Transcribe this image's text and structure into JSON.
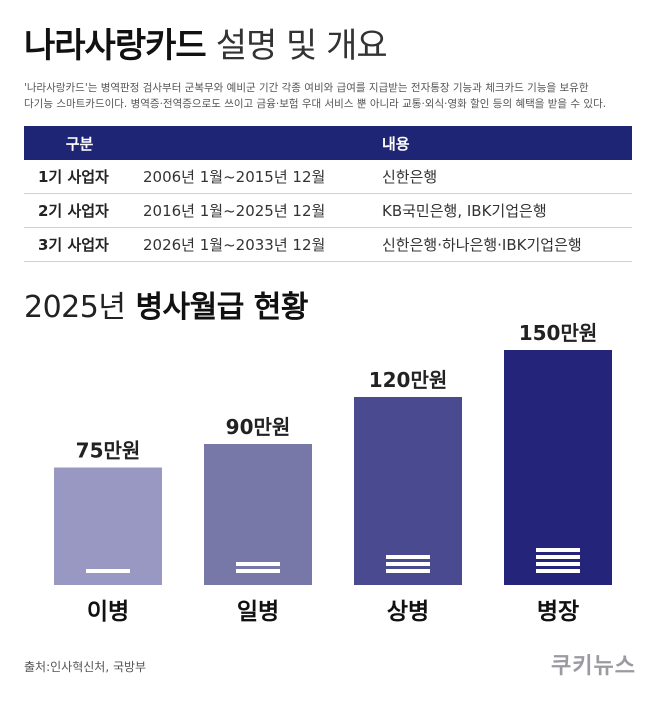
{
  "header": {
    "title_bold": "나라사랑카드",
    "title_light": "설명 및 개요"
  },
  "description": {
    "line1": "'나라사랑카드'는 병역판정 검사부터 군복무와 예비군 기간 각종 여비와 급여를 지급받는 전자통장 기능과 체크카드 기능을 보유한",
    "line2": "다기능 스마트카드이다. 병역증·전역증으로도 쓰이고 금융·보험 우대 서비스 뿐 아니라 교통·외식·영화 할인 등의 혜택을 받을 수 있다."
  },
  "table": {
    "headers": [
      "구분",
      "",
      "내용"
    ],
    "rows": [
      [
        "1기 사업자",
        "2006년 1월~2015년 12월",
        "신한은행"
      ],
      [
        "2기 사업자",
        "2016년 1월~2025년 12월",
        "KB국민은행, IBK기업은행"
      ],
      [
        "3기 사업자",
        "2026년 1월~2033년 12월",
        "신한은행·하나은행·IBK기업은행"
      ]
    ]
  },
  "chart_title": {
    "year": "2025년",
    "bold": "병사월급 현황"
  },
  "chart_data": {
    "type": "bar",
    "categories": [
      "이병",
      "일병",
      "상병",
      "병장"
    ],
    "values": [
      75,
      90,
      120,
      150
    ],
    "value_labels": [
      "75만원",
      "90만원",
      "120만원",
      "150만원"
    ],
    "rank_stripes": [
      1,
      2,
      3,
      4
    ],
    "colors": [
      "#9898c2",
      "#7777a8",
      "#4a4a90",
      "#24247a"
    ],
    "title": "2025년 병사월급 현황",
    "xlabel": "",
    "ylabel": ""
  },
  "source": "출처:인사혁신처, 국방부",
  "logo": "쿠키뉴스"
}
